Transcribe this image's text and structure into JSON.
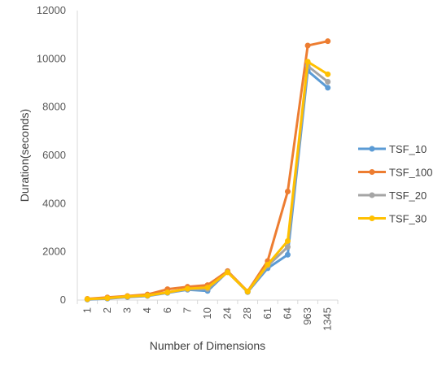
{
  "chart_data": {
    "type": "line",
    "title": "",
    "xlabel": "Number of Dimensions",
    "ylabel": "Duration(seconds)",
    "categories": [
      "1",
      "2",
      "3",
      "4",
      "6",
      "7",
      "10",
      "24",
      "28",
      "61",
      "64",
      "963",
      "1345"
    ],
    "ylim": [
      0,
      12000
    ],
    "yticks": [
      0,
      2000,
      4000,
      6000,
      8000,
      10000,
      12000
    ],
    "grid": false,
    "legend": "right",
    "series": [
      {
        "name": "TSF_10",
        "color": "#5B9BD5",
        "values": [
          20,
          60,
          120,
          170,
          300,
          430,
          380,
          1170,
          330,
          1320,
          1880,
          9500,
          8800
        ]
      },
      {
        "name": "TSF_100",
        "color": "#ED7D31",
        "values": [
          50,
          110,
          170,
          230,
          450,
          550,
          620,
          1200,
          360,
          1620,
          4500,
          10550,
          10730
        ]
      },
      {
        "name": "TSF_20",
        "color": "#A5A5A5",
        "values": [
          30,
          70,
          130,
          180,
          310,
          450,
          460,
          1160,
          340,
          1420,
          2200,
          9700,
          9050
        ]
      },
      {
        "name": "TSF_30",
        "color": "#FFC000",
        "values": [
          40,
          80,
          150,
          190,
          320,
          470,
          520,
          1150,
          350,
          1470,
          2450,
          9880,
          9360
        ]
      }
    ]
  }
}
